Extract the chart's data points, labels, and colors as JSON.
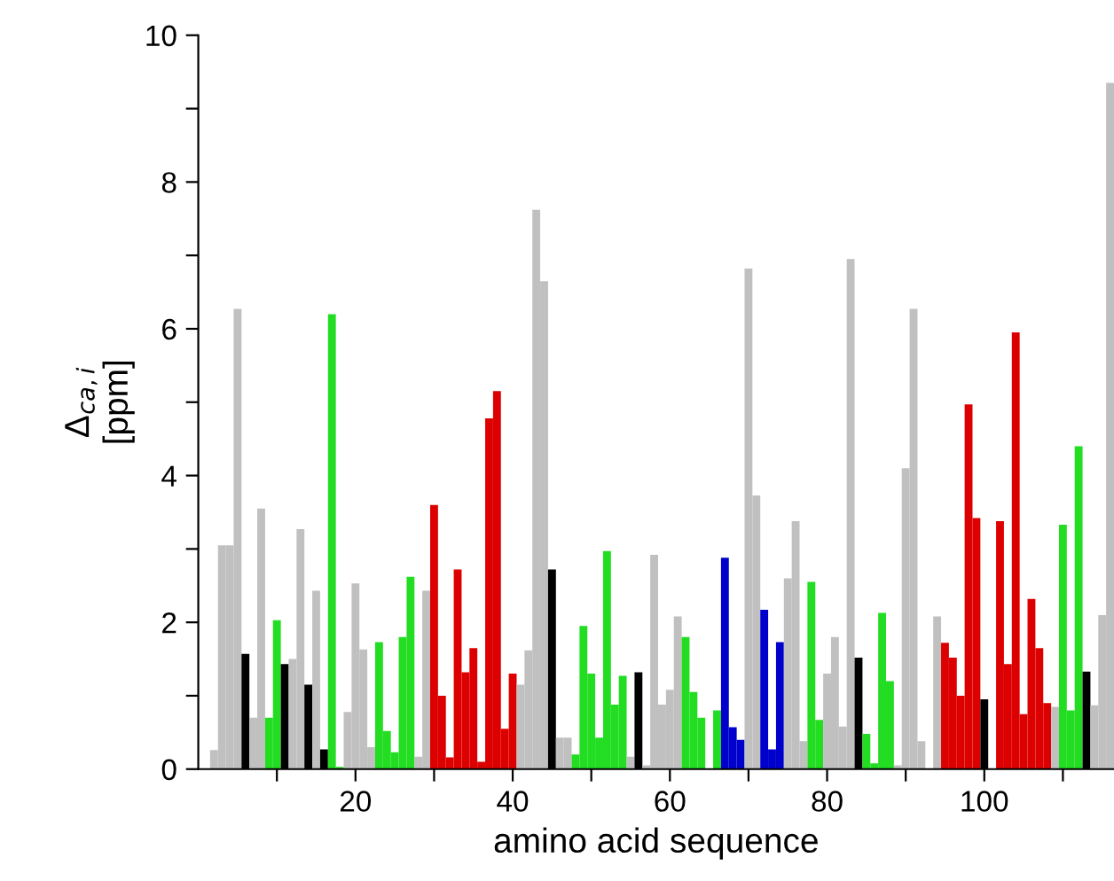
{
  "chart_data": {
    "type": "bar",
    "xlabel": "amino acid sequence",
    "ylabel": "Δ$_{ca,i}$\n[ppm]",
    "x": [
      2,
      3,
      4,
      5,
      6,
      7,
      8,
      9,
      10,
      11,
      12,
      13,
      14,
      15,
      16,
      17,
      18,
      19,
      20,
      21,
      22,
      23,
      24,
      25,
      26,
      27,
      28,
      29,
      30,
      31,
      32,
      33,
      34,
      35,
      36,
      37,
      38,
      39,
      40,
      41,
      42,
      43,
      44,
      45,
      46,
      47,
      48,
      49,
      50,
      51,
      52,
      53,
      54,
      55,
      56,
      57,
      58,
      59,
      60,
      61,
      62,
      63,
      64,
      65,
      66,
      67,
      68,
      69,
      70,
      71,
      72,
      73,
      74,
      75,
      76,
      77,
      78,
      79,
      80,
      81,
      82,
      83,
      84,
      85,
      86,
      87,
      88,
      89,
      90,
      91,
      92,
      93,
      94,
      95,
      96,
      97,
      98,
      99,
      100,
      101,
      102,
      103,
      104,
      105,
      106,
      107,
      108,
      109,
      110,
      111,
      112,
      113,
      114,
      115,
      116
    ],
    "values": [
      0.26,
      3.05,
      3.05,
      6.27,
      1.57,
      0.7,
      3.55,
      0.7,
      2.03,
      1.43,
      1.5,
      3.27,
      1.15,
      2.43,
      0.27,
      6.2,
      0.03,
      0.78,
      2.53,
      1.63,
      0.3,
      1.73,
      0.52,
      0.23,
      1.8,
      2.62,
      0.17,
      2.43,
      3.6,
      1.0,
      0.16,
      2.72,
      1.32,
      1.65,
      0.1,
      4.78,
      5.15,
      0.55,
      1.3,
      1.15,
      1.62,
      7.62,
      6.65,
      2.72,
      0.43,
      0.43,
      0.2,
      1.95,
      1.3,
      0.43,
      2.97,
      0.88,
      1.27,
      0.17,
      1.32,
      0.05,
      2.92,
      0.88,
      1.08,
      2.08,
      1.8,
      1.05,
      0.7,
      null,
      0.8,
      2.88,
      0.57,
      0.4,
      6.82,
      3.73,
      2.17,
      0.27,
      1.73,
      2.6,
      3.38,
      0.38,
      2.55,
      0.67,
      1.3,
      1.8,
      0.58,
      6.95,
      1.52,
      0.48,
      0.08,
      2.13,
      1.2,
      0.05,
      4.1,
      6.27,
      0.38,
      null,
      2.08,
      1.72,
      1.52,
      1.0,
      4.97,
      3.42,
      0.95,
      null,
      3.38,
      1.43,
      5.95,
      0.75,
      2.32,
      1.65,
      0.9,
      0.85,
      3.33,
      0.8,
      4.4,
      1.33,
      0.87,
      2.1,
      9.35
    ],
    "colors": [
      "#c0c0c0",
      "#c0c0c0",
      "#c0c0c0",
      "#c0c0c0",
      "#000000",
      "#c0c0c0",
      "#c0c0c0",
      "#22dd22",
      "#22dd22",
      "#000000",
      "#c0c0c0",
      "#c0c0c0",
      "#000000",
      "#c0c0c0",
      "#000000",
      "#22dd22",
      "#22dd22",
      "#c0c0c0",
      "#c0c0c0",
      "#c0c0c0",
      "#c0c0c0",
      "#22dd22",
      "#22dd22",
      "#22dd22",
      "#22dd22",
      "#22dd22",
      "#c0c0c0",
      "#c0c0c0",
      "#dd0000",
      "#dd0000",
      "#dd0000",
      "#dd0000",
      "#dd0000",
      "#dd0000",
      "#dd0000",
      "#dd0000",
      "#dd0000",
      "#dd0000",
      "#dd0000",
      "#c0c0c0",
      "#c0c0c0",
      "#c0c0c0",
      "#c0c0c0",
      "#000000",
      "#c0c0c0",
      "#c0c0c0",
      "#22dd22",
      "#22dd22",
      "#22dd22",
      "#22dd22",
      "#22dd22",
      "#22dd22",
      "#22dd22",
      "#c0c0c0",
      "#000000",
      "#c0c0c0",
      "#c0c0c0",
      "#c0c0c0",
      "#c0c0c0",
      "#c0c0c0",
      "#22dd22",
      "#22dd22",
      "#22dd22",
      "#c0c0c0",
      "#22dd22",
      "#0000cc",
      "#0000cc",
      "#0000cc",
      "#c0c0c0",
      "#c0c0c0",
      "#0000cc",
      "#0000cc",
      "#0000cc",
      "#c0c0c0",
      "#c0c0c0",
      "#c0c0c0",
      "#22dd22",
      "#22dd22",
      "#c0c0c0",
      "#c0c0c0",
      "#c0c0c0",
      "#c0c0c0",
      "#000000",
      "#22dd22",
      "#22dd22",
      "#22dd22",
      "#22dd22",
      "#c0c0c0",
      "#c0c0c0",
      "#c0c0c0",
      "#c0c0c0",
      "#c0c0c0",
      "#c0c0c0",
      "#dd0000",
      "#dd0000",
      "#dd0000",
      "#dd0000",
      "#dd0000",
      "#000000",
      "#dd0000",
      "#dd0000",
      "#dd0000",
      "#dd0000",
      "#dd0000",
      "#dd0000",
      "#dd0000",
      "#dd0000",
      "#c0c0c0",
      "#22dd22",
      "#22dd22",
      "#22dd22",
      "#000000",
      "#c0c0c0",
      "#c0c0c0",
      "#c0c0c0"
    ],
    "xlim": [
      0,
      116.5
    ],
    "xticks": [
      {
        "value": 10,
        "label": null
      },
      20,
      {
        "value": 30,
        "label": null
      },
      40,
      {
        "value": 50,
        "label": null
      },
      60,
      {
        "value": 70,
        "label": null
      },
      80,
      {
        "value": 90,
        "label": null
      },
      100,
      {
        "value": 110,
        "label": null
      }
    ],
    "ylim": [
      0,
      10
    ],
    "yticks": [
      0,
      {
        "value": 1,
        "label": null
      },
      2,
      {
        "value": 3,
        "label": null
      },
      4,
      {
        "value": 5,
        "label": null
      },
      6,
      {
        "value": 7,
        "label": null
      },
      8,
      {
        "value": 9,
        "label": null
      },
      10
    ],
    "grid": false,
    "legend": false
  }
}
